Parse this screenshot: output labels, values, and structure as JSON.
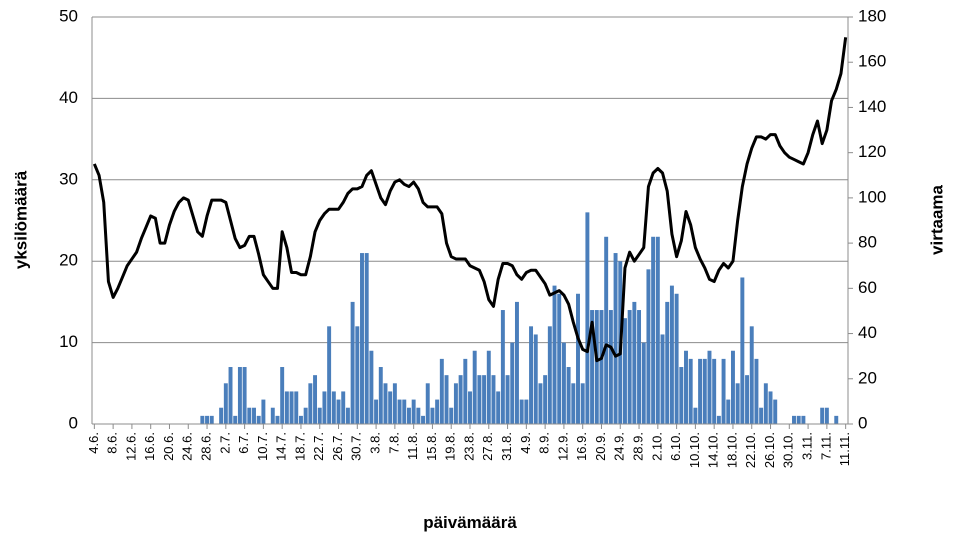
{
  "chart_data": {
    "type": "bar-line",
    "x_label": "päivämäärä",
    "y_label": "yksilömäärä",
    "y2_label": "virtaama",
    "categories": [
      "4.6.",
      null,
      null,
      null,
      "8.6.",
      null,
      null,
      null,
      "12.6.",
      null,
      null,
      null,
      "16.6.",
      null,
      null,
      null,
      "20.6.",
      null,
      null,
      null,
      "24.6.",
      null,
      null,
      null,
      "28.6.",
      null,
      null,
      null,
      "2.7.",
      null,
      null,
      null,
      "6.7.",
      null,
      null,
      null,
      "10.7.",
      null,
      null,
      null,
      "14.7.",
      null,
      null,
      null,
      "18.7.",
      null,
      null,
      null,
      "22.7.",
      null,
      null,
      null,
      "26.7.",
      null,
      null,
      null,
      "30.7.",
      null,
      null,
      null,
      "3.8.",
      null,
      null,
      null,
      "7.8.",
      null,
      null,
      null,
      "11.8.",
      null,
      null,
      null,
      "15.8.",
      null,
      null,
      null,
      "19.8.",
      null,
      null,
      null,
      "23.8.",
      null,
      null,
      null,
      "27.8.",
      null,
      null,
      null,
      "31.8.",
      null,
      null,
      null,
      "4.9.",
      null,
      null,
      null,
      "8.9.",
      null,
      null,
      null,
      "12.9.",
      null,
      null,
      null,
      "16.9.",
      null,
      null,
      null,
      "20.9.",
      null,
      null,
      null,
      "24.9.",
      null,
      null,
      null,
      "28.9.",
      null,
      null,
      null,
      "2.10.",
      null,
      null,
      null,
      "6.10.",
      null,
      null,
      null,
      "10.10.",
      null,
      null,
      null,
      "14.10.",
      null,
      null,
      null,
      "18.10.",
      null,
      null,
      null,
      "22.10.",
      null,
      null,
      null,
      "26.10.",
      null,
      null,
      null,
      "30.10.",
      null,
      null,
      null,
      "3.11.",
      null,
      null,
      null,
      "7.11.",
      null,
      null,
      null,
      "11.11."
    ],
    "series": [
      {
        "type": "bar",
        "color": "#4a7ebb",
        "values": [
          0,
          0,
          0,
          0,
          0,
          0,
          0,
          0,
          0,
          0,
          0,
          0,
          0,
          0,
          0,
          0,
          0,
          0,
          0,
          0,
          0,
          0,
          0,
          1,
          1,
          1,
          0,
          2,
          5,
          7,
          1,
          7,
          7,
          2,
          2,
          1,
          3,
          0,
          2,
          1,
          7,
          4,
          4,
          4,
          1,
          2,
          5,
          6,
          2,
          4,
          12,
          4,
          3,
          4,
          2,
          15,
          12,
          21,
          21,
          9,
          3,
          7,
          5,
          4,
          5,
          3,
          3,
          2,
          3,
          2,
          1,
          5,
          2,
          3,
          8,
          6,
          2,
          5,
          6,
          8,
          4,
          9,
          6,
          6,
          9,
          6,
          4,
          14,
          6,
          10,
          15,
          3,
          3,
          12,
          11,
          5,
          6,
          12,
          17,
          16,
          10,
          7,
          5,
          16,
          5,
          26,
          14,
          14,
          14,
          23,
          14,
          21,
          20,
          13,
          14,
          15,
          14,
          10,
          19,
          23,
          23,
          11,
          15,
          17,
          16,
          7,
          9,
          8,
          2,
          8,
          8,
          9,
          8,
          1,
          8,
          3,
          9,
          5,
          18,
          6,
          12,
          8,
          2,
          5,
          4,
          3,
          0,
          0,
          0,
          1,
          1,
          1,
          0,
          0,
          0,
          2,
          2,
          0,
          1,
          0,
          0
        ]
      },
      {
        "type": "line",
        "axis": "y2",
        "color": "#000000",
        "values": [
          115,
          110,
          98,
          63,
          56,
          60,
          65,
          70,
          73,
          76,
          82,
          87,
          92,
          91,
          80,
          80,
          88,
          94,
          98,
          100,
          99,
          92,
          85,
          83,
          92,
          99,
          99,
          99,
          98,
          90,
          82,
          78,
          79,
          83,
          83,
          75,
          66,
          63,
          60,
          60,
          85,
          78,
          67,
          67,
          66,
          66,
          74,
          85,
          90,
          93,
          95,
          95,
          95,
          98,
          102,
          104,
          104,
          105,
          110,
          112,
          106,
          100,
          97,
          103,
          107,
          108,
          106,
          105,
          107,
          104,
          98,
          96,
          96,
          96,
          93,
          80,
          74,
          73,
          73,
          73,
          70,
          69,
          68,
          63,
          55,
          52,
          64,
          71,
          71,
          70,
          66,
          64,
          67,
          68,
          68,
          65,
          62,
          57,
          58,
          59,
          57,
          53,
          45,
          38,
          33,
          32,
          45,
          28,
          29,
          35,
          34,
          30,
          31,
          69,
          76,
          72,
          75,
          78,
          105,
          111,
          113,
          111,
          103,
          84,
          74,
          81,
          94,
          88,
          78,
          73,
          69,
          64,
          63,
          68,
          71,
          69,
          72,
          90,
          105,
          115,
          122,
          127,
          127,
          126,
          128,
          128,
          123,
          120,
          118,
          117,
          116,
          115,
          120,
          128,
          134,
          124,
          130,
          143,
          148,
          155,
          171
        ]
      }
    ],
    "ylim": [
      0,
      50
    ],
    "yticks": [
      0,
      10,
      20,
      30,
      40,
      50
    ],
    "y2lim": [
      0,
      180
    ],
    "y2ticks": [
      0,
      20,
      40,
      60,
      80,
      100,
      120,
      140,
      160,
      180
    ],
    "grid": true
  }
}
